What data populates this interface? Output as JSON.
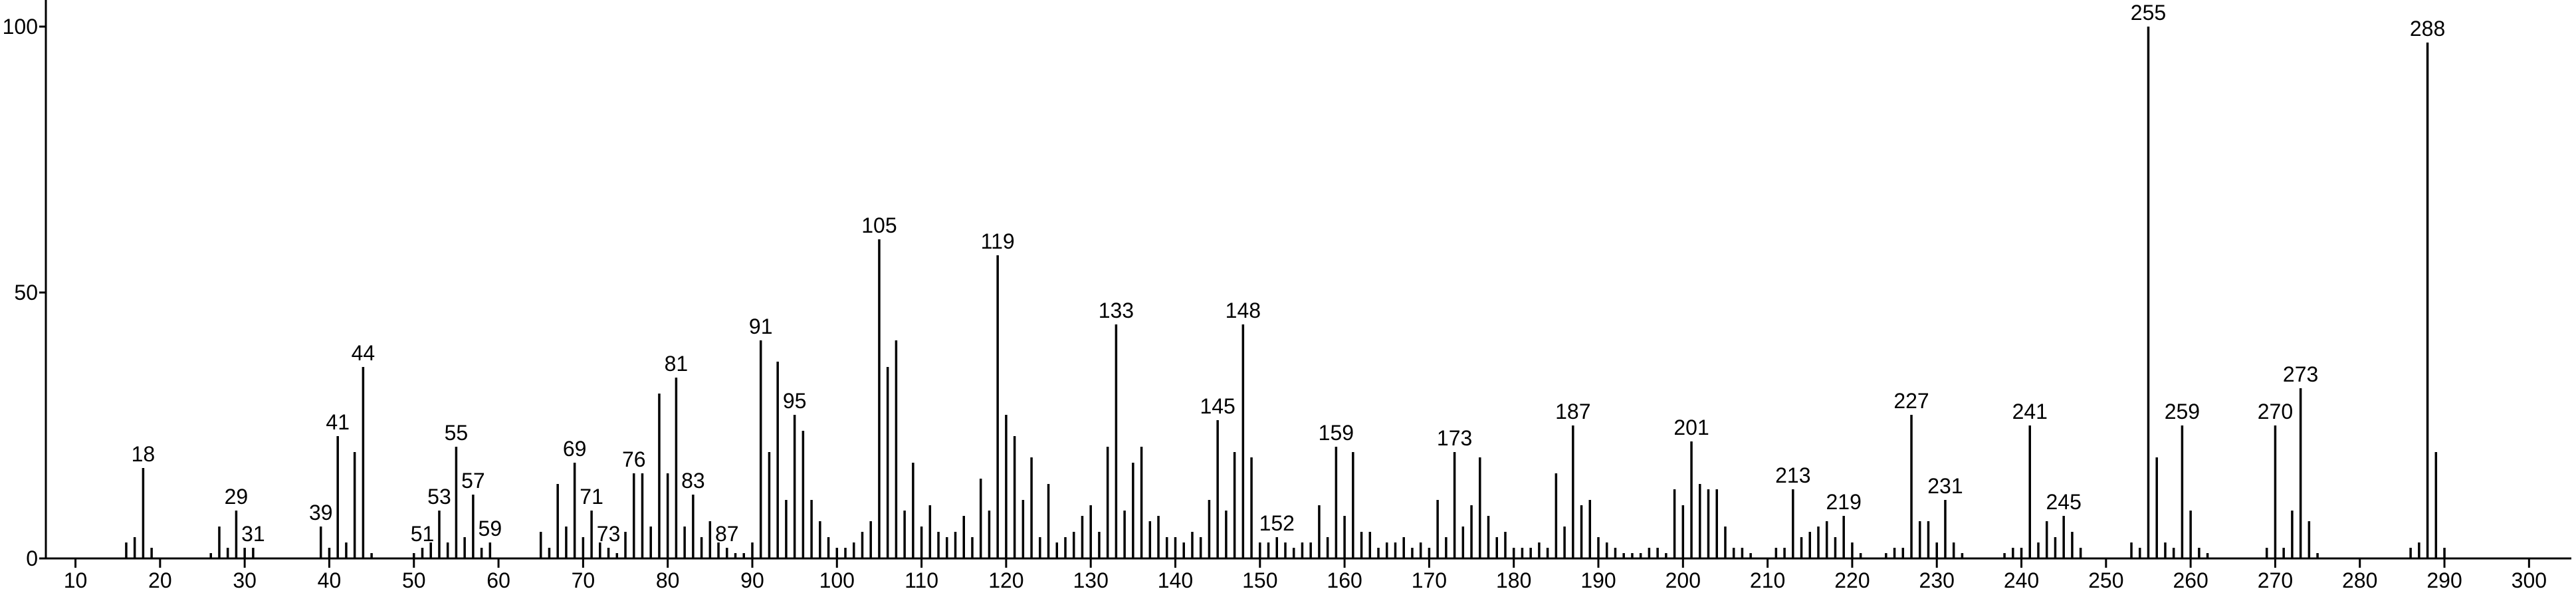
{
  "chart_data": {
    "type": "bar",
    "color": "#000000",
    "x": [
      16,
      17,
      18,
      19,
      26,
      27,
      28,
      29,
      30,
      31,
      39,
      40,
      41,
      42,
      43,
      44,
      45,
      50,
      51,
      52,
      53,
      54,
      55,
      56,
      57,
      58,
      59,
      65,
      66,
      67,
      68,
      69,
      70,
      71,
      72,
      73,
      74,
      75,
      76,
      77,
      78,
      79,
      80,
      81,
      82,
      83,
      84,
      85,
      86,
      87,
      88,
      89,
      90,
      91,
      92,
      93,
      94,
      95,
      96,
      97,
      98,
      99,
      100,
      101,
      102,
      103,
      104,
      105,
      106,
      107,
      108,
      109,
      110,
      111,
      112,
      113,
      114,
      115,
      116,
      117,
      118,
      119,
      120,
      121,
      122,
      123,
      124,
      125,
      126,
      127,
      128,
      129,
      130,
      131,
      132,
      133,
      134,
      135,
      136,
      137,
      138,
      139,
      140,
      141,
      142,
      143,
      144,
      145,
      146,
      147,
      148,
      149,
      150,
      151,
      152,
      153,
      154,
      155,
      156,
      157,
      158,
      159,
      160,
      161,
      162,
      163,
      164,
      165,
      166,
      167,
      168,
      169,
      170,
      171,
      172,
      173,
      174,
      175,
      176,
      177,
      178,
      179,
      180,
      181,
      182,
      183,
      184,
      185,
      186,
      187,
      188,
      189,
      190,
      191,
      192,
      193,
      194,
      195,
      196,
      197,
      198,
      199,
      200,
      201,
      202,
      203,
      204,
      205,
      206,
      207,
      208,
      211,
      212,
      213,
      214,
      215,
      216,
      217,
      218,
      219,
      220,
      221,
      224,
      225,
      226,
      227,
      228,
      229,
      230,
      231,
      232,
      233,
      238,
      239,
      240,
      241,
      242,
      243,
      244,
      245,
      246,
      247,
      253,
      254,
      255,
      256,
      257,
      258,
      259,
      260,
      261,
      262,
      269,
      270,
      271,
      272,
      273,
      274,
      275,
      286,
      287,
      288,
      289,
      290
    ],
    "values": [
      3,
      4,
      17,
      2,
      1,
      6,
      2,
      9,
      2,
      2,
      6,
      2,
      23,
      3,
      20,
      36,
      1,
      1,
      2,
      3,
      9,
      3,
      21,
      4,
      12,
      2,
      3,
      5,
      2,
      14,
      6,
      18,
      4,
      9,
      3,
      2,
      1,
      5,
      16,
      16,
      6,
      31,
      16,
      34,
      6,
      12,
      4,
      7,
      3,
      2,
      1,
      1,
      3,
      41,
      20,
      37,
      11,
      27,
      24,
      11,
      7,
      4,
      2,
      2,
      3,
      5,
      7,
      60,
      36,
      41,
      9,
      18,
      6,
      10,
      5,
      4,
      5,
      8,
      4,
      15,
      9,
      57,
      27,
      23,
      11,
      19,
      4,
      14,
      3,
      4,
      5,
      8,
      10,
      5,
      21,
      44,
      9,
      18,
      21,
      7,
      8,
      4,
      4,
      3,
      5,
      4,
      11,
      26,
      9,
      20,
      44,
      19,
      3,
      3,
      4,
      3,
      2,
      3,
      3,
      10,
      4,
      21,
      8,
      20,
      5,
      5,
      2,
      3,
      3,
      4,
      2,
      3,
      2,
      11,
      4,
      20,
      6,
      10,
      19,
      8,
      4,
      5,
      2,
      2,
      2,
      3,
      2,
      16,
      6,
      25,
      10,
      11,
      4,
      3,
      2,
      1,
      1,
      1,
      2,
      2,
      1,
      13,
      10,
      22,
      14,
      13,
      13,
      6,
      2,
      2,
      1,
      2,
      2,
      13,
      4,
      5,
      6,
      7,
      4,
      8,
      3,
      1,
      1,
      2,
      2,
      27,
      7,
      7,
      3,
      11,
      3,
      1,
      1,
      2,
      2,
      25,
      3,
      7,
      4,
      8,
      5,
      2,
      3,
      2,
      100,
      19,
      3,
      2,
      25,
      9,
      2,
      1,
      2,
      25,
      2,
      9,
      32,
      7,
      1,
      2,
      3,
      97,
      20,
      2
    ],
    "peak_labels": [
      18,
      29,
      31,
      39,
      41,
      44,
      51,
      53,
      55,
      57,
      59,
      69,
      71,
      73,
      76,
      81,
      83,
      87,
      91,
      95,
      105,
      119,
      133,
      145,
      148,
      152,
      159,
      173,
      187,
      201,
      213,
      219,
      227,
      231,
      241,
      245,
      255,
      259,
      270,
      273,
      288
    ],
    "xlim": [
      6.5,
      305
    ],
    "xticks": [
      10,
      20,
      30,
      40,
      50,
      60,
      70,
      80,
      90,
      100,
      110,
      120,
      130,
      140,
      150,
      160,
      170,
      180,
      190,
      200,
      210,
      220,
      230,
      240,
      250,
      260,
      270,
      280,
      290,
      300
    ],
    "ylim": [
      0,
      105
    ],
    "yticks": [
      0,
      50,
      100
    ]
  }
}
